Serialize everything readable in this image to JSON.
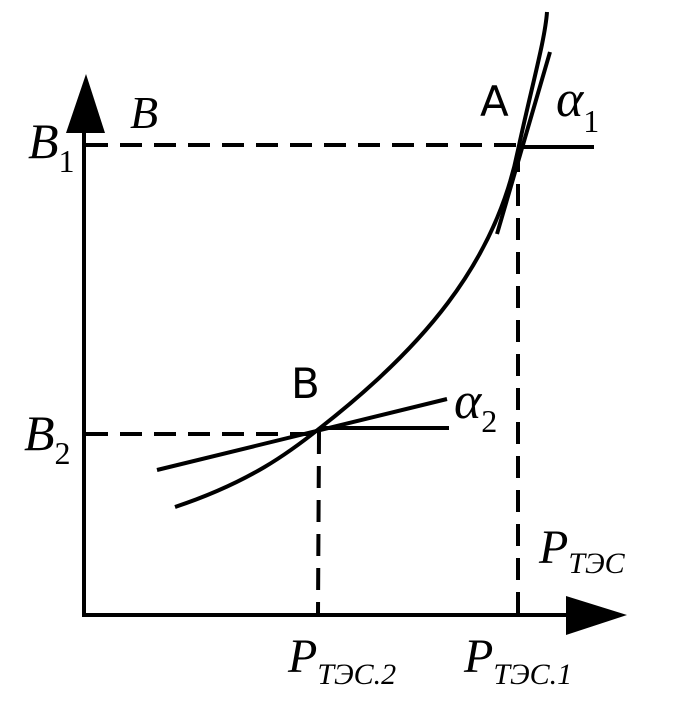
{
  "y_axis_label": "B",
  "x_axis_label": {
    "main": "P",
    "sub": "ТЭС"
  },
  "levels": [
    {
      "main": "B",
      "sub": "1"
    },
    {
      "main": "B",
      "sub": "2"
    }
  ],
  "x_marks": [
    {
      "main": "P",
      "sub": "ТЭС.1"
    },
    {
      "main": "P",
      "sub": "ТЭС.2"
    }
  ],
  "points": [
    {
      "label": "A",
      "angle": {
        "main": "α",
        "sub": "1"
      }
    },
    {
      "label": "B",
      "angle": {
        "main": "α",
        "sub": "2"
      }
    }
  ]
}
